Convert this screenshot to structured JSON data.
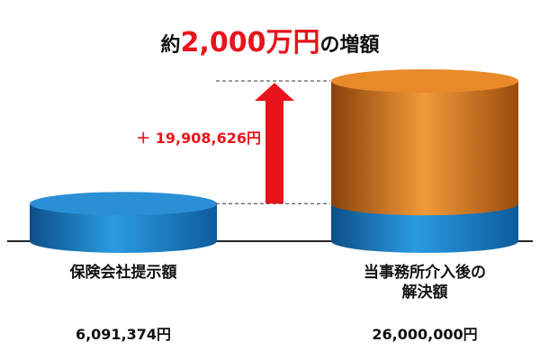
{
  "chart_data": {
    "type": "bar",
    "stacked": true,
    "title_prefix": "約",
    "title_highlight": "2,000万円",
    "title_suffix": "の増額",
    "annotation": "＋ 19,908,626円",
    "categories": [
      "保険会社提示額",
      "当事務所介入後の解決額"
    ],
    "series": [
      {
        "color": "#1f86cf",
        "values": [
          6091374,
          6091374
        ]
      },
      {
        "color": "#e8821a",
        "values": [
          null,
          19908626
        ]
      }
    ],
    "totals": [
      6091374,
      26000000
    ],
    "total_labels": [
      "6,091,374円",
      "26,000,000円"
    ]
  }
}
